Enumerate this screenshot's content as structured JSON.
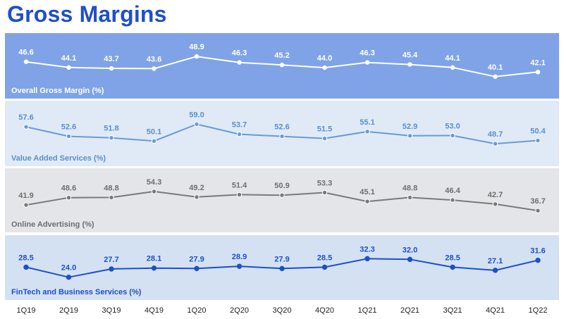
{
  "page_title": "Gross Margins",
  "chart_data": {
    "type": "line",
    "title": "Gross Margins",
    "categories": [
      "1Q19",
      "2Q19",
      "3Q19",
      "4Q19",
      "1Q20",
      "2Q20",
      "3Q20",
      "4Q20",
      "1Q21",
      "2Q21",
      "3Q21",
      "4Q21",
      "1Q22"
    ],
    "series": [
      {
        "name": "Overall Gross Margin (%)",
        "values": [
          46.6,
          44.1,
          43.7,
          43.6,
          48.9,
          46.3,
          45.2,
          44.0,
          46.3,
          45.4,
          44.1,
          40.1,
          42.1
        ],
        "labels": [
          "46.6",
          "44.1",
          "43.7",
          "43.6",
          "48.9",
          "46.3",
          "45.2",
          "44.0",
          "46.3",
          "45.4",
          "44.1",
          "40.1",
          "42.1"
        ],
        "ylim": [
          38.5,
          50.5
        ],
        "panel_color": "#7fa3e6",
        "line_color": "#ffffff",
        "marker_fill": "#ffffff",
        "marker_stroke": "#ffffff",
        "label_color": "#ffffff",
        "name_color": "#ffffff"
      },
      {
        "name": "Value Added Services (%)",
        "values": [
          57.6,
          52.6,
          51.8,
          50.1,
          59.0,
          53.7,
          52.6,
          51.5,
          55.1,
          52.9,
          53.0,
          48.7,
          50.4
        ],
        "labels": [
          "57.6",
          "52.6",
          "51.8",
          "50.1",
          "59.0",
          "53.7",
          "52.6",
          "51.5",
          "55.1",
          "52.9",
          "53.0",
          "48.7",
          "50.4"
        ],
        "ylim": [
          46.5,
          61.0
        ],
        "panel_color": "#dfeaf6",
        "line_color": "#6a9bd4",
        "marker_fill": "#6a9bd4",
        "marker_stroke": "#ffffff",
        "label_color": "#5b8fcb",
        "name_color": "#5b8fcb"
      },
      {
        "name": "Online Advertising (%)",
        "values": [
          41.9,
          48.6,
          48.8,
          54.3,
          49.2,
          51.4,
          50.9,
          53.3,
          45.1,
          48.8,
          46.4,
          42.7,
          36.7
        ],
        "labels": [
          "41.9",
          "48.6",
          "48.8",
          "54.3",
          "49.2",
          "51.4",
          "50.9",
          "53.3",
          "45.1",
          "48.8",
          "46.4",
          "42.7",
          "36.7"
        ],
        "ylim": [
          33.5,
          57.5
        ],
        "panel_color": "#e3e5e8",
        "line_color": "#7a7a7a",
        "marker_fill": "#7a7a7a",
        "marker_stroke": "#ffffff",
        "label_color": "#6f6f6f",
        "name_color": "#6f6f6f"
      },
      {
        "name": "FinTech and Business Services (%)",
        "values": [
          28.5,
          24.0,
          27.7,
          28.1,
          27.9,
          28.9,
          27.9,
          28.5,
          32.3,
          32.0,
          28.5,
          27.1,
          31.6
        ],
        "labels": [
          "28.5",
          "24.0",
          "27.7",
          "28.1",
          "27.9",
          "28.9",
          "27.9",
          "28.5",
          "32.3",
          "32.0",
          "28.5",
          "27.1",
          "31.6"
        ],
        "ylim": [
          22.0,
          34.0
        ],
        "panel_color": "#d3e1f3",
        "line_color": "#1f4fc9",
        "marker_fill": "#1f4fc9",
        "marker_stroke": "#1f4fc9",
        "label_color": "#1f4fc9",
        "name_color": "#1f4fc9"
      }
    ],
    "xlabel": "",
    "ylabel": "",
    "grid": false,
    "legend": "panel labels bottom-left"
  }
}
